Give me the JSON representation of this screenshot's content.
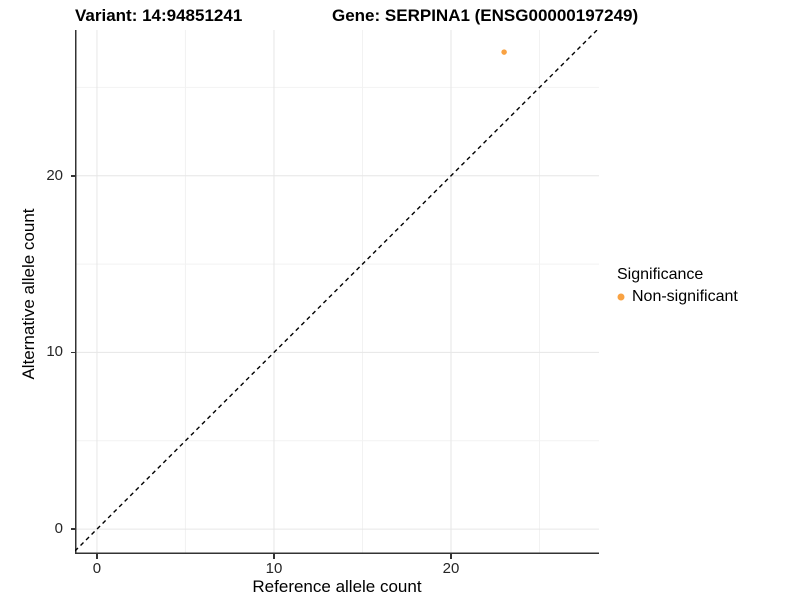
{
  "chart_data": {
    "type": "scatter",
    "title_left": "Variant: 14:94851241",
    "title_right": "Gene: SERPINA1 (ENSG00000197249)",
    "xlabel": "Reference allele count",
    "ylabel": "Alternative allele count",
    "xlim": [
      -1.24,
      28.36
    ],
    "ylim": [
      -1.41,
      28.25
    ],
    "x_ticks": [
      0,
      10,
      20
    ],
    "y_ticks": [
      0,
      10,
      20
    ],
    "x_minor_ticks": [
      5,
      15,
      25
    ],
    "y_minor_ticks": [
      5,
      15,
      25
    ],
    "grid": true,
    "legend": {
      "title": "Significance",
      "position": "right",
      "entries": [
        {
          "label": "Non-significant",
          "color": "#F9A242"
        }
      ]
    },
    "series": [
      {
        "name": "Non-significant",
        "color": "#F9A242",
        "points": [
          {
            "x": 23,
            "y": 27
          }
        ]
      }
    ],
    "reference_line": {
      "description": "y = x identity line",
      "slope": 1,
      "intercept": 0,
      "style": "dashed",
      "color": "#000000"
    }
  },
  "style_colors": {
    "grid_major": "#E6E6E6",
    "grid_minor": "#F2F2F2",
    "axis_line": "#333333",
    "tick_label": "#262626",
    "point_orange": "#F9A242"
  }
}
